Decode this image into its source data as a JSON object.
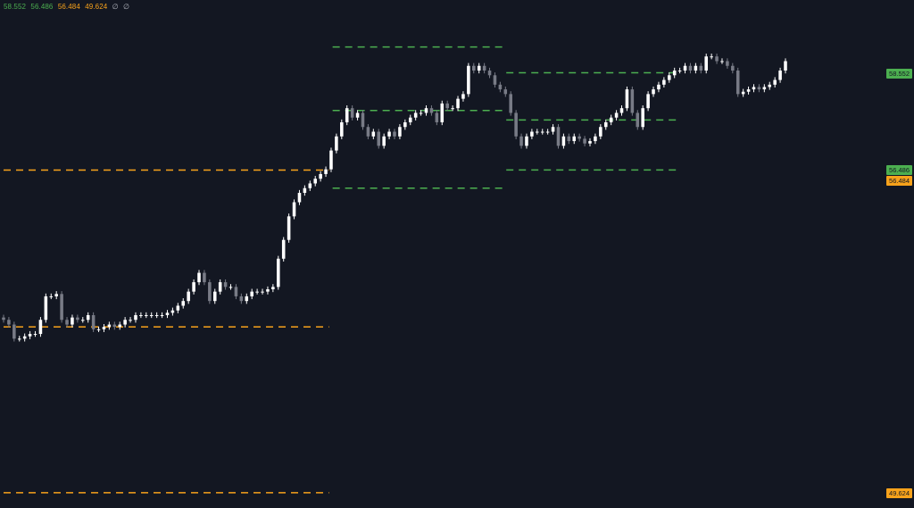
{
  "legend": {
    "v1": "58.552",
    "v2": "56.486",
    "v3": "56.484",
    "v4": "49.624",
    "empty1": "∅",
    "empty2": "∅"
  },
  "colors": {
    "background": "#131722",
    "green": "#4caf50",
    "orange": "#f7a21b",
    "candle_up": "#ffffff",
    "candle_down": "#787b86"
  },
  "chart_data": {
    "type": "candlestick",
    "ylim": [
      49.3,
      60.1
    ],
    "levels": [
      {
        "name": "upper-green-top",
        "value": 59.1,
        "color": "green",
        "x_range": [
          0.36,
          0.55
        ]
      },
      {
        "name": "upper-green-mid",
        "value": 57.75,
        "color": "green",
        "x_range": [
          0.36,
          0.55
        ]
      },
      {
        "name": "upper-green-bottom",
        "value": 56.1,
        "color": "green",
        "x_range": [
          0.36,
          0.55
        ]
      },
      {
        "name": "right-green-top",
        "value": 58.552,
        "color": "green",
        "x_range": [
          0.55,
          0.74
        ]
      },
      {
        "name": "right-green-mid",
        "value": 57.55,
        "color": "green",
        "x_range": [
          0.55,
          0.74
        ]
      },
      {
        "name": "right-green-bottom",
        "value": 56.486,
        "color": "green",
        "x_range": [
          0.55,
          0.74
        ]
      },
      {
        "name": "orange-top",
        "value": 56.484,
        "color": "orange",
        "x_range": [
          0.0,
          0.36
        ]
      },
      {
        "name": "orange-mid",
        "value": 53.15,
        "color": "orange",
        "x_range": [
          0.0,
          0.36
        ]
      },
      {
        "name": "orange-bottom",
        "value": 49.624,
        "color": "orange",
        "x_range": [
          0.0,
          0.36
        ]
      }
    ],
    "price_tags": [
      {
        "label": "58.552",
        "value": 58.552,
        "color": "green"
      },
      {
        "label": "56.486",
        "value": 56.486,
        "color": "green"
      },
      {
        "label": "56.484",
        "value": 56.266,
        "color": "orange"
      },
      {
        "label": "49.624",
        "value": 49.624,
        "color": "orange"
      }
    ],
    "candles_close": [
      53.3,
      53.2,
      52.9,
      52.9,
      52.95,
      53.0,
      53.0,
      53.3,
      53.8,
      53.8,
      53.85,
      53.3,
      53.2,
      53.35,
      53.3,
      53.3,
      53.4,
      53.1,
      53.1,
      53.15,
      53.2,
      53.15,
      53.2,
      53.3,
      53.3,
      53.4,
      53.4,
      53.4,
      53.4,
      53.4,
      53.4,
      53.45,
      53.5,
      53.6,
      53.7,
      53.9,
      54.1,
      54.3,
      54.1,
      53.7,
      53.9,
      54.1,
      54.0,
      54.0,
      53.8,
      53.7,
      53.8,
      53.9,
      53.9,
      53.9,
      53.95,
      54.0,
      54.6,
      55.0,
      55.5,
      55.8,
      56.0,
      56.1,
      56.2,
      56.3,
      56.4,
      56.5,
      56.9,
      57.2,
      57.5,
      57.8,
      57.6,
      57.7,
      57.4,
      57.2,
      57.3,
      57.0,
      57.2,
      57.3,
      57.2,
      57.4,
      57.5,
      57.6,
      57.7,
      57.7,
      57.8,
      57.7,
      57.5,
      57.9,
      57.8,
      57.8,
      58.0,
      58.1,
      58.7,
      58.6,
      58.7,
      58.6,
      58.5,
      58.3,
      58.2,
      58.1,
      57.7,
      57.2,
      57.0,
      57.2,
      57.3,
      57.3,
      57.3,
      57.3,
      57.4,
      57.0,
      57.2,
      57.1,
      57.2,
      57.15,
      57.05,
      57.1,
      57.2,
      57.4,
      57.5,
      57.6,
      57.7,
      57.8,
      58.2,
      57.7,
      57.4,
      57.8,
      58.1,
      58.2,
      58.3,
      58.4,
      58.5,
      58.6,
      58.6,
      58.7,
      58.6,
      58.7,
      58.6,
      58.9,
      58.9,
      58.8,
      58.8,
      58.7,
      58.6,
      58.1,
      58.15,
      58.2,
      58.25,
      58.2,
      58.25,
      58.3,
      58.4,
      58.6,
      58.8
    ]
  }
}
